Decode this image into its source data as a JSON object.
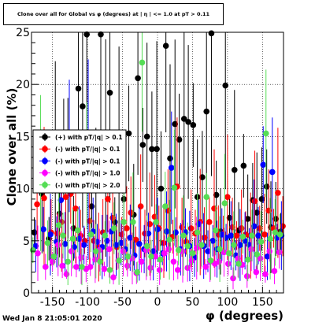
{
  "title": "Clone  over all for Global vs φ (degrees) at | η | <= 1.0 at pT > 0.11",
  "timestamp": "Wed Jan  8 21:05:01 2020",
  "chart_data": {
    "type": "scatter",
    "xlabel": "φ (degrees)",
    "ylabel": "Clone  over all (%)",
    "xlim": [
      -180,
      180
    ],
    "ylim": [
      0,
      25
    ],
    "x_ticks": [
      "-150",
      "-100",
      "-50",
      "0",
      "50",
      "100",
      "150"
    ],
    "y_ticks": [
      "0",
      "5",
      "10",
      "15",
      "20",
      "25"
    ],
    "grid": true,
    "legend_position": "left-middle",
    "series": [
      {
        "name": "(+) with pT/|q| > 0.1",
        "color": "#000000",
        "x": [
          -176,
          -165,
          -155,
          -146,
          -140,
          -134,
          -128,
          -120,
          -113,
          -107,
          -101,
          -94,
          -88,
          -81,
          -74,
          -68,
          -61,
          -55,
          -48,
          -41,
          -34,
          -28,
          -21,
          -15,
          -8,
          -1,
          5,
          12,
          18,
          25,
          31,
          38,
          44,
          51,
          57,
          64,
          70,
          77,
          84,
          90,
          97,
          103,
          110,
          116,
          123,
          129,
          136,
          142,
          149,
          156,
          162,
          169,
          176
        ],
        "y": [
          5.8,
          9.5,
          5.2,
          12.7,
          7.6,
          13.8,
          11.0,
          6.2,
          19.6,
          17.9,
          24.8,
          8.3,
          9.9,
          24.8,
          13.9,
          19.2,
          6.8,
          13.9,
          9.0,
          15.3,
          7.5,
          20.6,
          14.2,
          15.0,
          13.8,
          13.8,
          10.0,
          23.7,
          12.9,
          16.2,
          14.7,
          16.7,
          16.4,
          16.1,
          9.2,
          11.1,
          17.4,
          24.9,
          9.4,
          5.9,
          19.9,
          7.2,
          11.8,
          6.0,
          12.2,
          7.1,
          8.9,
          7.7,
          9.0,
          10.2,
          6.3,
          7.1,
          5.9
        ]
      },
      {
        "name": "(-) with pT/|q| > 0.1",
        "color": "#ff0000",
        "x": [
          -172,
          -162,
          -152,
          -143,
          -137,
          -131,
          -124,
          -117,
          -110,
          -104,
          -97,
          -91,
          -84,
          -78,
          -71,
          -64,
          -58,
          -51,
          -44,
          -38,
          -31,
          -24,
          -18,
          -11,
          -4,
          2,
          9,
          15,
          22,
          28,
          35,
          41,
          48,
          54,
          61,
          67,
          74,
          81,
          87,
          94,
          100,
          107,
          113,
          120,
          126,
          133,
          139,
          146,
          153,
          159,
          166,
          172,
          179
        ],
        "y": [
          8.5,
          9.1,
          5.8,
          5.7,
          6.8,
          9.2,
          9.5,
          8.1,
          5.5,
          5.0,
          6.9,
          5.0,
          4.4,
          5.8,
          9.0,
          7.2,
          4.4,
          5.6,
          6.2,
          7.7,
          5.1,
          8.3,
          5.7,
          6.6,
          7.3,
          6.2,
          4.8,
          7.9,
          5.4,
          10.2,
          6.3,
          4.9,
          6.2,
          5.7,
          6.8,
          5.3,
          6.8,
          8.1,
          5.6,
          5.7,
          9.2,
          6.3,
          5.5,
          6.2,
          5.6,
          5.5,
          8.8,
          6.2,
          5.6,
          7.9,
          6.2,
          9.6,
          6.4
        ]
      },
      {
        "name": "(-) with pT/|q| > 0.1",
        "color": "#0000ff",
        "x": [
          -174,
          -163,
          -153,
          -144,
          -138,
          -132,
          -126,
          -119,
          -112,
          -105,
          -99,
          -92,
          -86,
          -79,
          -72,
          -66,
          -59,
          -52,
          -46,
          -39,
          -33,
          -26,
          -19,
          -13,
          -6,
          0,
          7,
          13,
          20,
          26,
          33,
          40,
          46,
          53,
          59,
          66,
          72,
          79,
          85,
          92,
          98,
          105,
          112,
          118,
          125,
          131,
          138,
          144,
          151,
          157,
          164,
          171,
          177
        ],
        "y": [
          4.5,
          6.1,
          5.6,
          4.9,
          8.9,
          4.7,
          14.1,
          4.4,
          5.2,
          4.6,
          12.8,
          5.9,
          4.9,
          4.4,
          5.0,
          5.9,
          4.6,
          4.8,
          4.2,
          5.3,
          3.6,
          4.7,
          4.2,
          5.7,
          4.0,
          6.1,
          3.8,
          5.9,
          12.0,
          5.8,
          4.2,
          5.8,
          4.5,
          3.4,
          6.6,
          4.5,
          4.0,
          5.0,
          4.2,
          5.6,
          5.3,
          5.5,
          3.6,
          4.6,
          5.0,
          4.6,
          6.4,
          5.5,
          12.3,
          3.5,
          11.6,
          5.3,
          5.5
        ]
      },
      {
        "name": "(-) with pT/|q| > 1.0",
        "color": "#ff00ff",
        "x": [
          -171,
          -160,
          -150,
          -142,
          -136,
          -130,
          -123,
          -116,
          -109,
          -102,
          -96,
          -89,
          -83,
          -76,
          -69,
          -63,
          -56,
          -49,
          -43,
          -36,
          -30,
          -23,
          -16,
          -10,
          -3,
          3,
          10,
          16,
          23,
          29,
          36,
          43,
          49,
          56,
          62,
          69,
          75,
          82,
          88,
          95,
          101,
          108,
          115,
          121,
          128,
          134,
          141,
          147,
          154,
          160,
          167,
          174
        ],
        "y": [
          3.8,
          2.5,
          3.0,
          4.6,
          2.6,
          1.8,
          4.0,
          2.5,
          3.4,
          2.3,
          2.5,
          3.2,
          4.1,
          2.3,
          4.2,
          1.5,
          3.1,
          4.0,
          2.6,
          3.3,
          1.9,
          3.0,
          4.1,
          2.4,
          3.5,
          2.2,
          3.8,
          4.2,
          3.0,
          2.2,
          4.0,
          2.4,
          3.1,
          4.3,
          4.6,
          2.5,
          3.0,
          2.8,
          3.0,
          3.9,
          2.8,
          1.4,
          3.3,
          2.7,
          1.6,
          4.2,
          2.0,
          3.3,
          1.8,
          4.0,
          2.1,
          3.9
        ]
      },
      {
        "name": "(-) with pT/|q| > 2.0",
        "color": "#55dd55",
        "x": [
          -178,
          -167,
          -157,
          -148,
          -141,
          -135,
          -128,
          -121,
          -114,
          -108,
          -101,
          -95,
          -88,
          -82,
          -75,
          -68,
          -62,
          -55,
          -48,
          -42,
          -35,
          -29,
          -22,
          -15,
          -9,
          -2,
          4,
          11,
          17,
          24,
          30,
          37,
          43,
          50,
          57,
          63,
          70,
          76,
          83,
          89,
          96,
          102,
          109,
          116,
          122,
          129,
          135,
          142,
          148,
          155,
          161,
          168,
          175
        ],
        "y": [
          4.1,
          11.5,
          4.8,
          3.5,
          6.5,
          5.5,
          3.0,
          5.2,
          6.0,
          2.5,
          12.2,
          5.6,
          4.0,
          3.0,
          5.5,
          2.2,
          6.2,
          3.1,
          6.8,
          3.5,
          6.8,
          2.0,
          22.1,
          4.5,
          3.5,
          6.8,
          3.2,
          8.3,
          5.1,
          10.1,
          4.1,
          5.5,
          4.5,
          3.8,
          5.8,
          4.6,
          9.2,
          3.1,
          6.0,
          4.2,
          8.6,
          3.8,
          4.6,
          2.8,
          5.4,
          3.2,
          5.5,
          3.7,
          4.9,
          15.3,
          5.2,
          5.8,
          5.6
        ]
      }
    ]
  }
}
